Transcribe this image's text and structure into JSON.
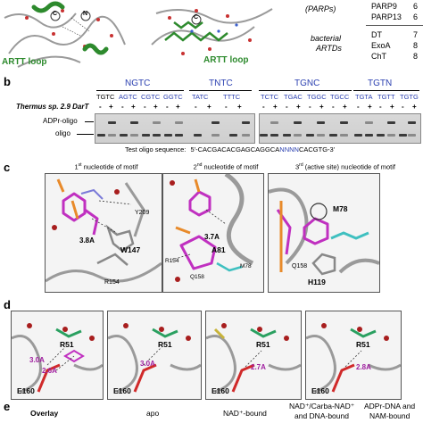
{
  "panel_a": {
    "artt_label_left": "ARTT loop",
    "artt_label_right": "ARTT loop",
    "c_label": "C",
    "n_label": "N",
    "c_label_right": "C",
    "legend": {
      "parps_label": "(PARPs)",
      "bacterial_label_1": "bacterial",
      "bacterial_label_2": "ARTDs",
      "rows": [
        {
          "name": "PARP9",
          "value": "6"
        },
        {
          "name": "PARP13",
          "value": "6"
        },
        {
          "name": "DT",
          "value": "7"
        },
        {
          "name": "ExoA",
          "value": "8"
        },
        {
          "name": "ChT",
          "value": "8"
        }
      ]
    }
  },
  "panel_b": {
    "letter": "b",
    "groups": [
      {
        "title": "NGTC",
        "lanes": [
          "TGTC",
          "AGTC",
          "CGTC",
          "GGTC"
        ]
      },
      {
        "title": "TNTC",
        "lanes": [
          "TATC",
          "TTTC"
        ]
      },
      {
        "title": "TGNC",
        "lanes": [
          "TCTC",
          "TGAC",
          "TGGC",
          "TGCC"
        ]
      },
      {
        "title": "TGTN",
        "lanes": [
          "TGTA",
          "TGTT",
          "TGTG"
        ]
      }
    ],
    "row_label": "Thermus sp. 2.9 DarT",
    "minus": "-",
    "plus": "+",
    "adpr_label": "ADPr-oligo",
    "oligo_label": "oligo",
    "test_seq_label": "Test oligo sequence:",
    "test_seq_prefix": "5'-CACGACACGAGCAGGCA",
    "test_seq_motif": "NNNN",
    "test_seq_suffix": "CACGTG-3'"
  },
  "panel_c": {
    "letter": "c",
    "boxes": [
      {
        "title_pre": "1",
        "title_sup": "st",
        "title_post": " nucleotide of motif",
        "labels": {
          "dist": "3.8A",
          "res1": "W147",
          "res2": "Y209",
          "res3": "R154"
        }
      },
      {
        "title_pre": "2",
        "title_sup": "nd",
        "title_post": " nucleotide of motif",
        "labels": {
          "dist": "3.7A",
          "res1": "A81",
          "res2": "R154",
          "res3": "Q158",
          "res4": "M78"
        }
      },
      {
        "title_pre": "3",
        "title_sup": "rd",
        "title_post": " (active site) nucleotide of motif",
        "labels": {
          "res1": "M78",
          "res2": "Q158",
          "res3": "H119"
        }
      }
    ]
  },
  "panel_d": {
    "letter": "d",
    "boxes": [
      {
        "dist1": "3.0A",
        "dist2": "2.6A",
        "res1": "R51",
        "res2": "E160"
      },
      {
        "dist1": "3.0A",
        "res1": "R51",
        "res2": "E160"
      },
      {
        "dist1": "2.7A",
        "res1": "R51",
        "res2": "E160"
      },
      {
        "dist1": "2.8A",
        "res1": "R51",
        "res2": "E160"
      }
    ]
  },
  "panel_e": {
    "letter": "e",
    "labels": [
      "Overlay",
      "apo",
      "NAD⁺-bound",
      "NAD⁺/Carba-NAD⁺",
      "and DNA-bound",
      "ADPr-DNA and",
      "NAM-bound"
    ]
  }
}
